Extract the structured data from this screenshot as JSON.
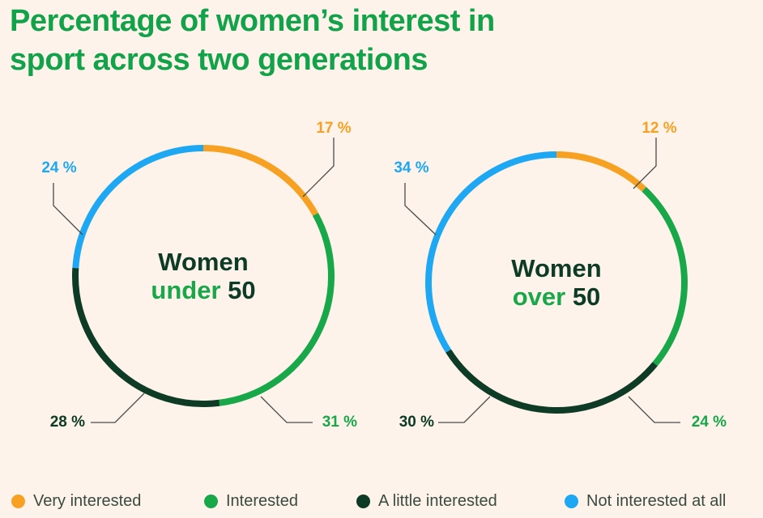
{
  "title_lines": [
    "Percentage of women’s interest in",
    "sport across two generations"
  ],
  "colors": {
    "very_interested": "#f7a122",
    "interested": "#18a84a",
    "a_little_interested": "#0d3b25",
    "not_interested": "#1ea7f2",
    "title": "#12a34a",
    "center_dark": "#0d3b25",
    "leader": "#4a4a4a"
  },
  "legend": [
    {
      "label": "Very interested",
      "color": "#f7a122"
    },
    {
      "label": "Interested",
      "color": "#18a84a"
    },
    {
      "label": "A little interested",
      "color": "#0d3b25"
    },
    {
      "label": "Not interested at all",
      "color": "#1ea7f2"
    }
  ],
  "chart_data": [
    {
      "type": "pie",
      "center_label": {
        "line1": "Women",
        "line2_accent": "under",
        "line2_rest": "50"
      },
      "categories": [
        "Very interested",
        "Interested",
        "A little interested",
        "Not interested at all"
      ],
      "values": [
        17,
        31,
        28,
        24
      ],
      "value_labels": [
        "17 %",
        "31 %",
        "28 %",
        "24 %"
      ]
    },
    {
      "type": "pie",
      "center_label": {
        "line1": "Women",
        "line2_accent": "over",
        "line2_rest": "50"
      },
      "categories": [
        "Very interested",
        "Interested",
        "A little interested",
        "Not interested at all"
      ],
      "values": [
        12,
        24,
        30,
        34
      ],
      "value_labels": [
        "12 %",
        "24 %",
        "30 %",
        "34 %"
      ]
    }
  ]
}
